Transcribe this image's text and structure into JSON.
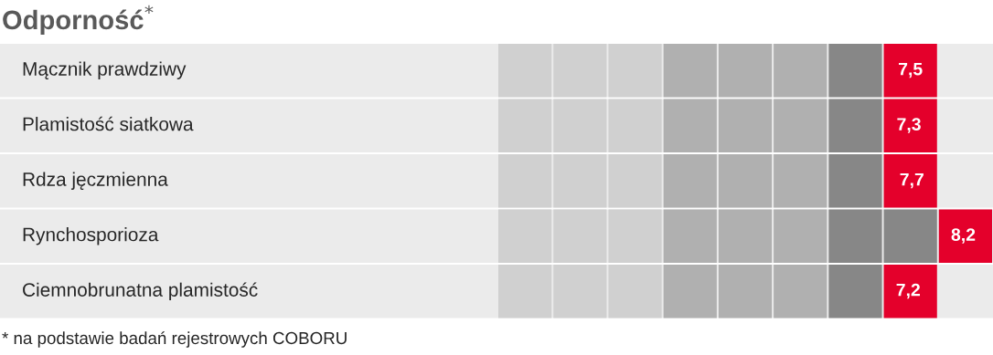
{
  "chart_data": {
    "type": "other",
    "title": "Odporność$^{*}$",
    "categories": [
      "Mącznik prawdziwy",
      "Plamistość siatkowa",
      "Rdza jęczmienna",
      "Rynchosporioza",
      "Ciemnobrunatna plamistość"
    ],
    "values": [
      7.5,
      7.3,
      7.7,
      8.2,
      7.2
    ],
    "value_labels": [
      "7,5",
      "7,3",
      "7,7",
      "8,2",
      "7,2"
    ],
    "color": "#e4002b",
    "annotations": [
      "* na podstawie badań rejestrowych COBORU"
    ]
  }
}
